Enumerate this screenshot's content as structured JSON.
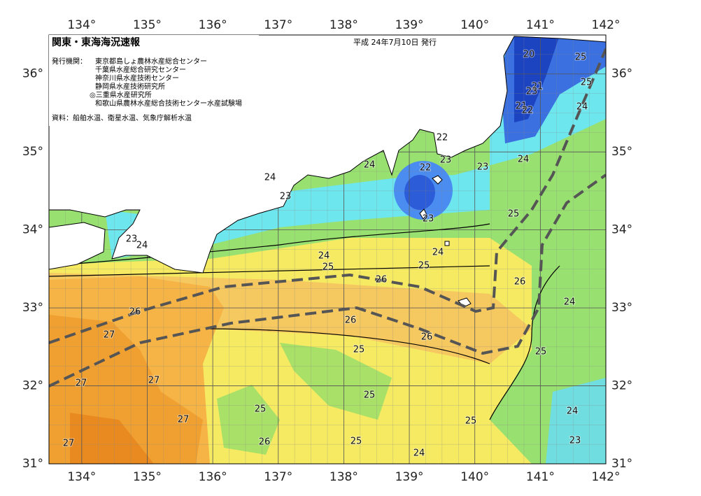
{
  "header": {
    "title": "関東・東海海況速報",
    "date": "平成 24年7月10日 発行",
    "issuer_label": "発行機関：",
    "issuers": [
      "東京都島しょ農林水産総合センター",
      "千葉県水産総合研究センター",
      "神奈川県水産技術センター",
      "静岡県水産技術研究所",
      "◎三重県水産研究所",
      "和歌山県農林水産総合技術センター水産試験場"
    ],
    "source": "資料：船舶水温、衛星水温、気象庁解析水温"
  },
  "map": {
    "lonlim": [
      133.5,
      142
    ],
    "latlim": [
      31,
      36.5
    ],
    "lon_ticks": [
      {
        "value": 134,
        "label": "134°"
      },
      {
        "value": 135,
        "label": "135°"
      },
      {
        "value": 136,
        "label": "136°"
      },
      {
        "value": 137,
        "label": "137°"
      },
      {
        "value": 138,
        "label": "138°"
      },
      {
        "value": 139,
        "label": "139°"
      },
      {
        "value": 140,
        "label": "140°"
      },
      {
        "value": 141,
        "label": "141°"
      },
      {
        "value": 142,
        "label": "142°"
      }
    ],
    "lat_ticks": [
      {
        "value": 31,
        "label": "31°"
      },
      {
        "value": 32,
        "label": "32°"
      },
      {
        "value": 33,
        "label": "33°"
      },
      {
        "value": 34,
        "label": "34°"
      },
      {
        "value": 35,
        "label": "35°"
      },
      {
        "value": 36,
        "label": "36°"
      }
    ],
    "contour_labels": [
      20,
      25,
      25,
      21,
      23,
      21,
      22,
      24,
      22,
      23,
      22,
      23,
      24,
      24,
      24,
      23,
      23,
      25,
      23,
      24,
      24,
      24,
      25,
      25,
      26,
      26,
      24,
      26,
      26,
      27,
      26,
      25,
      25,
      27,
      27,
      25,
      25,
      24,
      27,
      25,
      26,
      25,
      23,
      24,
      27
    ]
  }
}
